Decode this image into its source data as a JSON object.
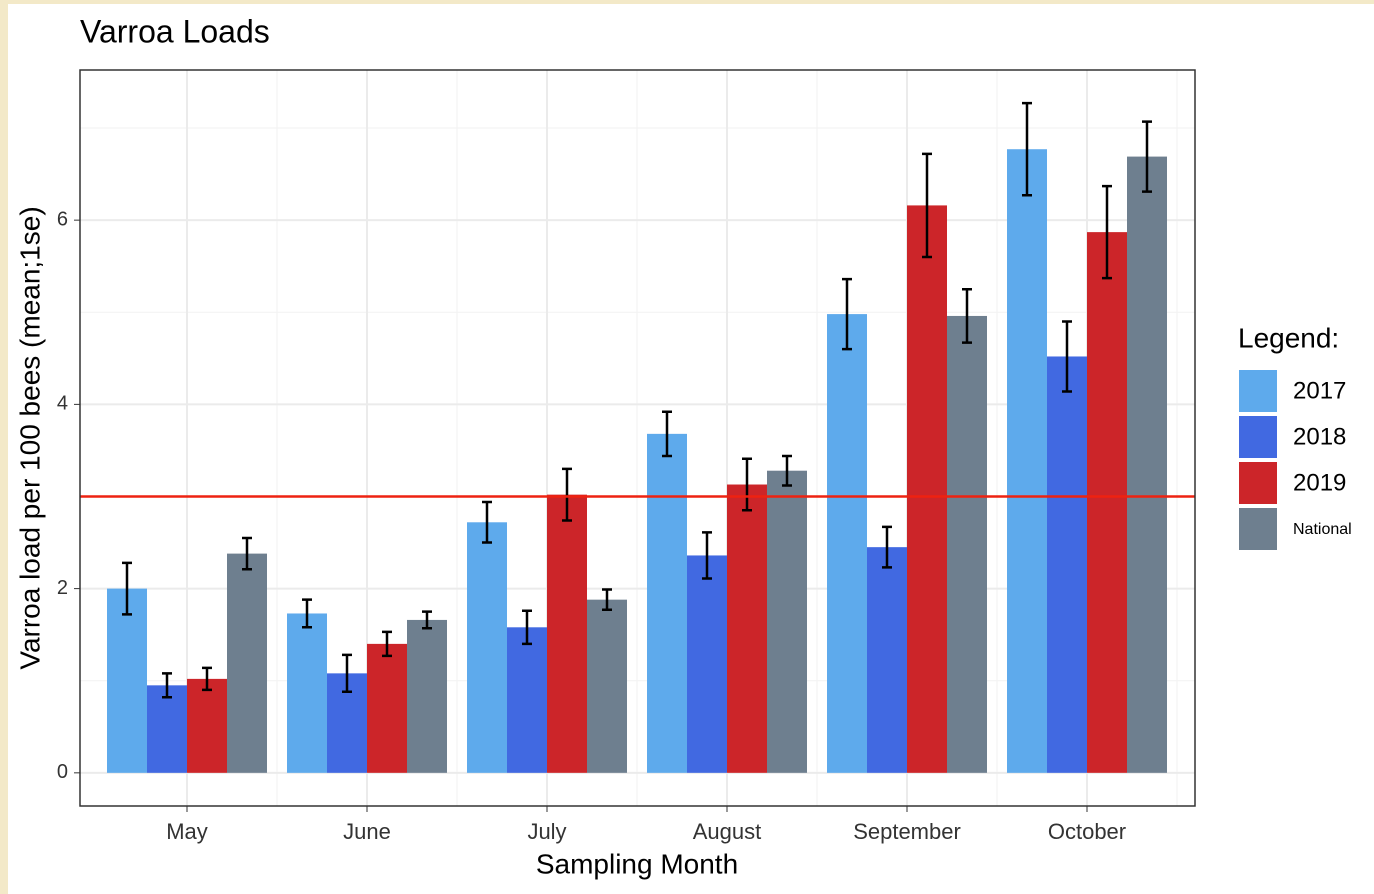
{
  "chart_data": {
    "type": "bar",
    "title": "Varroa Loads",
    "x_label": "Sampling Month",
    "y_label": "Varroa load per 100 bees (mean;1se)",
    "categories": [
      "May",
      "June",
      "July",
      "August",
      "September",
      "October"
    ],
    "series": [
      {
        "name": "2017",
        "color": "#5eaaec",
        "values": [
          2.0,
          1.73,
          2.72,
          3.68,
          4.98,
          6.77
        ],
        "errors": [
          0.28,
          0.15,
          0.22,
          0.24,
          0.38,
          0.5
        ]
      },
      {
        "name": "2018",
        "color": "#4169e1",
        "values": [
          0.95,
          1.08,
          1.58,
          2.36,
          2.45,
          4.52
        ],
        "errors": [
          0.13,
          0.2,
          0.18,
          0.25,
          0.22,
          0.38
        ]
      },
      {
        "name": "2019",
        "color": "#cc2529",
        "values": [
          1.02,
          1.4,
          3.02,
          3.13,
          6.16,
          5.87
        ],
        "errors": [
          0.12,
          0.13,
          0.28,
          0.28,
          0.56,
          0.5
        ]
      },
      {
        "name": "National",
        "color": "#6e7f8f",
        "values": [
          2.38,
          1.66,
          1.88,
          3.28,
          4.96,
          6.69
        ],
        "errors": [
          0.17,
          0.09,
          0.11,
          0.16,
          0.29,
          0.38
        ]
      }
    ],
    "reference_line": 3,
    "reference_color": "#ee2211",
    "ylim": [
      -0.36,
      7.63
    ],
    "yticks": [
      0,
      2,
      4,
      6
    ],
    "grid": true,
    "legend_title": "Legend:",
    "legend_position": "right"
  }
}
